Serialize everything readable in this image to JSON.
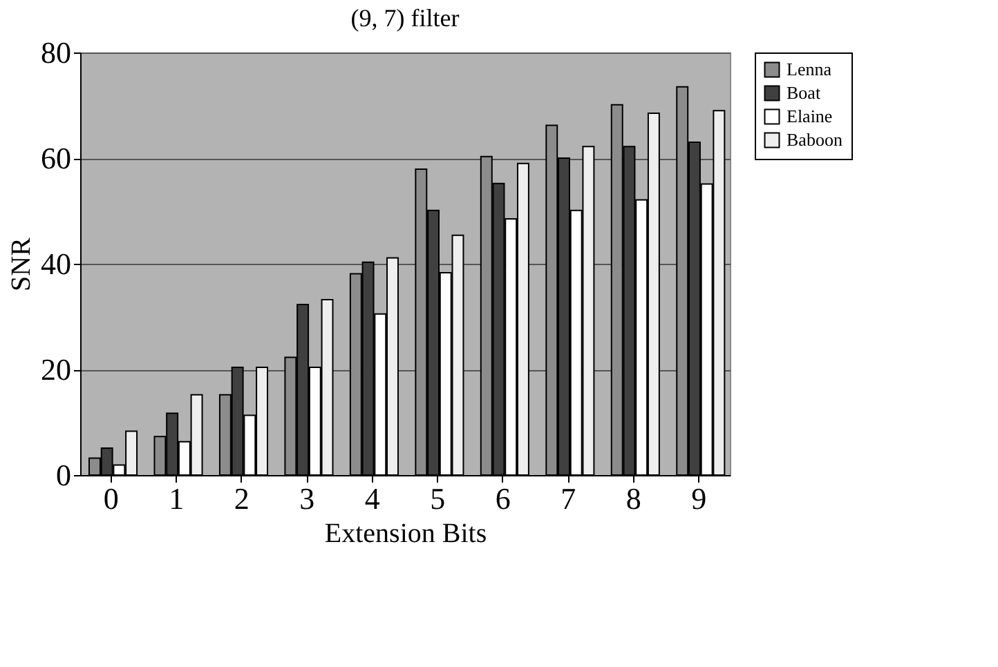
{
  "chart_data": {
    "type": "bar",
    "title": "(9, 7) filter",
    "xlabel": "Extension Bits",
    "ylabel": "SNR",
    "categories": [
      "0",
      "1",
      "2",
      "3",
      "4",
      "5",
      "6",
      "7",
      "8",
      "9"
    ],
    "series": [
      {
        "name": "Lenna",
        "color": "#8c8c8c",
        "values": [
          3.2,
          7.3,
          15.2,
          22.3,
          38.1,
          57.9,
          60.3,
          66.2,
          70.1,
          73.5
        ]
      },
      {
        "name": "Boat",
        "color": "#404040",
        "values": [
          5.1,
          11.7,
          20.4,
          32.3,
          40.3,
          50.1,
          55.2,
          60.0,
          62.2,
          63.0
        ]
      },
      {
        "name": "Elaine",
        "color": "#ffffff",
        "values": [
          1.9,
          6.3,
          11.3,
          20.4,
          30.5,
          38.3,
          48.5,
          50.1,
          52.1,
          55.1
        ]
      },
      {
        "name": "Baboon",
        "color": "#eeeeee",
        "values": [
          8.3,
          15.2,
          20.4,
          33.2,
          41.1,
          45.4,
          59.0,
          62.2,
          68.5,
          69.0
        ]
      }
    ],
    "ylim": [
      0,
      80
    ],
    "yticks": [
      0,
      20,
      40,
      60,
      80
    ],
    "grid": "y",
    "legend": "right"
  }
}
